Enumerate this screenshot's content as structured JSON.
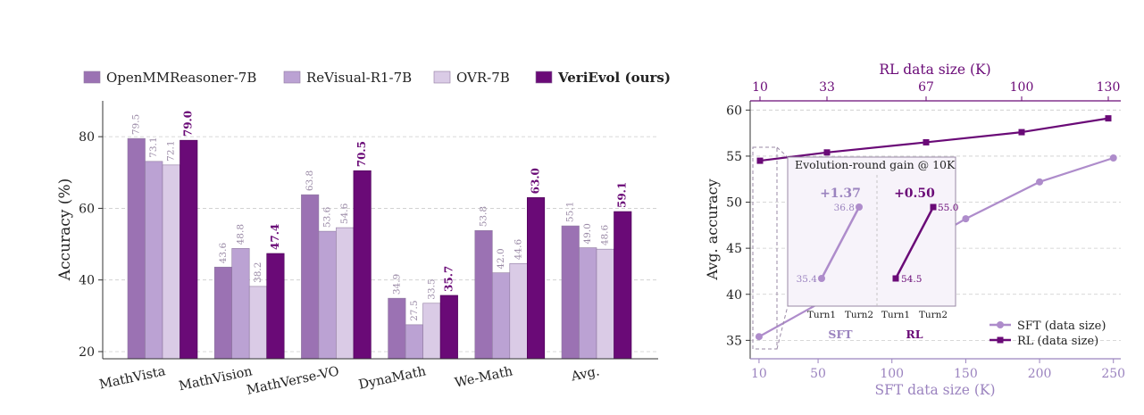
{
  "colors": {
    "openmm": "#9B72B3",
    "revisual": "#BBA2D3",
    "ovr": "#DACBE6",
    "veri": "#6A0A77",
    "sft": "#AE8CCB",
    "rl": "#6A0A77",
    "grid": "#cccccc",
    "axis_purple": "#6A0A77",
    "axis_lavender": "#9B83BF"
  },
  "chart_data": [
    {
      "type": "bar",
      "ylabel": "Accuracy (%)",
      "ylim": [
        18,
        90
      ],
      "yticks": [
        20,
        40,
        60,
        80
      ],
      "grid": true,
      "legend_position": "top",
      "categories": [
        "MathVista",
        "MathVision",
        "MathVerse-VO",
        "DynaMath",
        "We-Math",
        "Avg."
      ],
      "series": [
        {
          "name": "OpenMMReasoner-7B",
          "values": [
            79.5,
            43.6,
            63.8,
            34.9,
            53.8,
            55.1
          ],
          "labels": [
            "79.5",
            "43.6",
            "63.8",
            "34.9",
            "53.8",
            "55.1"
          ]
        },
        {
          "name": "ReVisual-R1-7B",
          "values": [
            73.1,
            48.8,
            53.6,
            27.5,
            42.0,
            49.0
          ],
          "labels": [
            "73.1",
            "48.8",
            "53.6",
            "27.5",
            "42.0",
            "49.0"
          ]
        },
        {
          "name": "OVR-7B",
          "values": [
            72.1,
            38.2,
            54.6,
            33.5,
            44.6,
            48.6
          ],
          "labels": [
            "72.1",
            "38.2",
            "54.6",
            "33.5",
            "44.6",
            "48.6"
          ]
        },
        {
          "name": "VeriEvol (ours)",
          "values": [
            79.0,
            47.4,
            70.5,
            35.7,
            63.0,
            59.1
          ],
          "labels": [
            "79.0",
            "47.4",
            "70.5",
            "35.7",
            "63.0",
            "59.1"
          ]
        }
      ]
    },
    {
      "type": "line",
      "ylabel": "Avg. accuracy",
      "xlabel": "SFT data size (K)",
      "x2label": "RL data size (K)",
      "ylim": [
        33,
        61
      ],
      "yticks": [
        35,
        40,
        45,
        50,
        55,
        60
      ],
      "xlim": [
        4,
        255
      ],
      "xticks": [
        10,
        50,
        100,
        150,
        200,
        250
      ],
      "x2ticks": [
        "10",
        "33",
        "67",
        "100",
        "130"
      ],
      "grid": true,
      "legend_position": "lower-right",
      "series": [
        {
          "name": "SFT (data size)",
          "x": [
            10,
            55,
            105,
            150,
            200,
            250
          ],
          "y": [
            35.4,
            39.4,
            44.0,
            48.2,
            52.2,
            54.8
          ]
        },
        {
          "name": "RL (data size)",
          "x2": [
            "10",
            "33",
            "67",
            "100",
            "130"
          ],
          "y": [
            54.5,
            55.4,
            56.5,
            57.6,
            59.1
          ]
        }
      ],
      "inset": {
        "title": "Evolution-round gain @ 10K",
        "categories": [
          "Turn1",
          "Turn2",
          "Turn1",
          "Turn2"
        ],
        "groups": [
          {
            "name": "SFT",
            "gain": "+1.37",
            "values": [
              35.4,
              36.8
            ],
            "labels": [
              "35.4",
              "36.8"
            ]
          },
          {
            "name": "RL",
            "gain": "+0.50",
            "values": [
              54.5,
              55.0
            ],
            "labels": [
              "54.5",
              "55.0"
            ]
          }
        ]
      }
    }
  ]
}
